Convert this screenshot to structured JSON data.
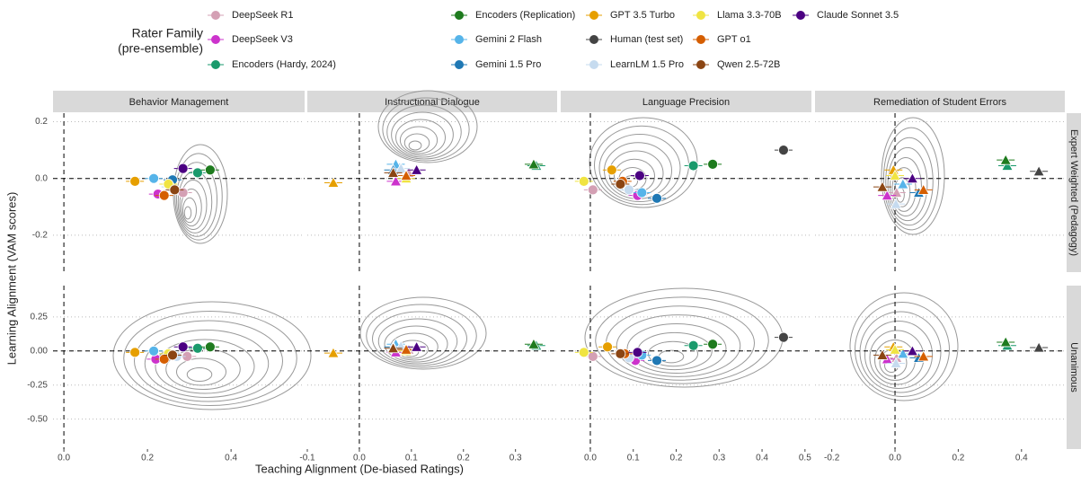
{
  "chart_data": {
    "type": "scatter",
    "legend_title": [
      "Rater Family",
      "(pre-ensemble)"
    ],
    "x_label": "Teaching Alignment (De-biased Ratings)",
    "y_label": "Learning Alignment (VAM scores)",
    "hline": 0,
    "vline": 0,
    "columns": [
      {
        "title": "Behavior Management",
        "marker": "circle",
        "xlim": [
          -0.026,
          0.576
        ],
        "xticks": [
          {
            "value": 0,
            "label": "0.0"
          },
          0.2,
          0.4
        ]
      },
      {
        "title": "Instructional Dialogue",
        "marker": "triangle",
        "xlim": [
          -0.1,
          0.38
        ],
        "xticks": [
          -0.1,
          {
            "value": 0,
            "label": "0.0"
          },
          0.1,
          0.2,
          0.3
        ]
      },
      {
        "title": "Language Precision",
        "marker": "circle",
        "xlim": [
          -0.069,
          0.515
        ],
        "xticks": [
          {
            "value": 0,
            "label": "0.0"
          },
          0.1,
          0.2,
          0.3,
          0.4,
          0.5
        ]
      },
      {
        "title": "Remediation of Student Errors",
        "marker": "triangle",
        "xlim": [
          -0.253,
          0.537
        ],
        "xticks": [
          -0.2,
          {
            "value": 0,
            "label": "0.0"
          },
          0.2,
          0.4
        ]
      }
    ],
    "rows": [
      {
        "title": "Expert Weighted (Pedagogy)",
        "ylim": [
          -0.33,
          0.23
        ],
        "yticks": [
          0.2,
          {
            "value": 0,
            "label": "0.0"
          },
          -0.2
        ]
      },
      {
        "title": "Unanimous",
        "ylim": [
          -0.72,
          0.48
        ],
        "yticks": [
          0.25,
          {
            "value": 0,
            "label": "0.00"
          },
          -0.25,
          {
            "value": -0.5,
            "label": "-0.50"
          }
        ]
      }
    ],
    "series": [
      {
        "name": "DeepSeek R1",
        "color": "#d4a0b4",
        "x": [
          0.285,
          0.095,
          0.006,
          0.005,
          0.295,
          0.095,
          0.006,
          0.005
        ],
        "y": [
          -0.05,
          0.02,
          -0.04,
          -0.05,
          -0.04,
          0.01,
          -0.04,
          -0.05
        ]
      },
      {
        "name": "DeepSeek V3",
        "color": "#cc33cc",
        "x": [
          0.225,
          0.07,
          0.11,
          -0.025,
          0.22,
          0.07,
          0.105,
          -0.025
        ],
        "y": [
          -0.055,
          -0.01,
          -0.06,
          -0.06,
          -0.06,
          -0.01,
          -0.07,
          -0.06
        ]
      },
      {
        "name": "Encoders (Hardy, 2024)",
        "color": "#1a9a6c",
        "x": [
          0.32,
          0.34,
          0.24,
          0.355,
          0.32,
          0.34,
          0.24,
          0.355
        ],
        "y": [
          0.02,
          0.045,
          0.045,
          0.045,
          0.02,
          0.04,
          0.04,
          0.04
        ]
      },
      {
        "name": "Encoders (Replication)",
        "color": "#1e7b1e",
        "x": [
          0.35,
          0.335,
          0.285,
          0.35,
          0.35,
          0.335,
          0.285,
          0.35
        ],
        "y": [
          0.03,
          0.05,
          0.05,
          0.065,
          0.03,
          0.05,
          0.05,
          0.065
        ]
      },
      {
        "name": "Gemini 2 Flash",
        "color": "#56b4e9",
        "x": [
          0.215,
          0.07,
          0.12,
          0.025,
          0.215,
          0.07,
          0.12,
          0.025
        ],
        "y": [
          0.0,
          0.05,
          -0.05,
          -0.02,
          0.0,
          0.05,
          -0.03,
          -0.02
        ]
      },
      {
        "name": "Gemini 1.5 Pro",
        "color": "#1f78b4",
        "x": [
          0.26,
          0.065,
          0.155,
          0.075,
          0.25,
          0.065,
          0.155,
          0.075
        ],
        "y": [
          -0.005,
          0.03,
          -0.07,
          -0.05,
          -0.02,
          0.03,
          -0.07,
          -0.05
        ]
      },
      {
        "name": "GPT 3.5 Turbo",
        "color": "#e69f00",
        "x": [
          0.17,
          -0.05,
          0.05,
          -0.005,
          0.17,
          -0.05,
          0.04,
          -0.005
        ],
        "y": [
          -0.01,
          -0.015,
          0.03,
          0.03,
          -0.01,
          -0.015,
          0.03,
          0.03
        ]
      },
      {
        "name": "Human (test set)",
        "color": "#444444",
        "x": [
          null,
          null,
          0.45,
          0.455,
          null,
          null,
          0.45,
          0.455
        ],
        "y": [
          null,
          null,
          0.1,
          0.025,
          null,
          null,
          0.1,
          0.025
        ]
      },
      {
        "name": "LearnLM 1.5 Pro",
        "color": "#c6dbef",
        "x": [
          0.255,
          0.08,
          0.09,
          0.003,
          0.27,
          0.08,
          0.09,
          0.003
        ],
        "y": [
          -0.03,
          0.035,
          -0.04,
          -0.09,
          -0.04,
          0.035,
          -0.05,
          -0.09
        ]
      },
      {
        "name": "Llama 3.3-70B",
        "color": "#f0e442",
        "x": [
          0.25,
          0.09,
          -0.015,
          0.0,
          0.25,
          0.09,
          -0.015,
          0.0
        ],
        "y": [
          -0.02,
          0.0,
          -0.01,
          0.01,
          -0.02,
          0.0,
          -0.01,
          0.01
        ]
      },
      {
        "name": "GPT o1",
        "color": "#d55e00",
        "x": [
          0.24,
          0.09,
          0.075,
          0.09,
          0.24,
          0.09,
          0.08,
          0.09
        ],
        "y": [
          -0.06,
          0.01,
          -0.01,
          -0.04,
          -0.06,
          0.01,
          -0.02,
          -0.04
        ]
      },
      {
        "name": "Qwen 2.5-72B",
        "color": "#8b4513",
        "x": [
          0.265,
          0.065,
          0.07,
          -0.04,
          0.26,
          0.065,
          0.07,
          -0.04
        ],
        "y": [
          -0.04,
          0.02,
          -0.02,
          -0.03,
          -0.03,
          0.02,
          -0.02,
          -0.03
        ]
      },
      {
        "name": "Claude Sonnet 3.5",
        "color": "#4b0082",
        "x": [
          0.285,
          0.11,
          0.115,
          0.055,
          0.285,
          0.11,
          0.11,
          0.055
        ],
        "y": [
          0.035,
          0.03,
          0.01,
          0.0,
          0.03,
          0.03,
          -0.01,
          0.0
        ]
      }
    ]
  }
}
